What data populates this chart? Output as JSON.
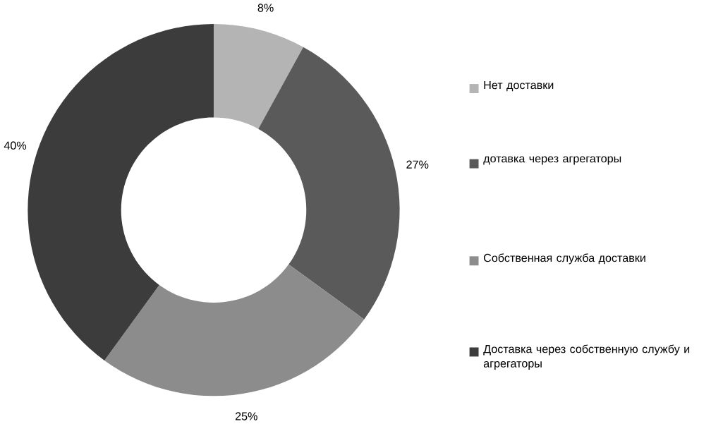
{
  "chart_data": {
    "type": "donut",
    "categories": [
      "Нет доставки",
      "дотавка через агрегаторы",
      "Собственная служба доставки",
      "Доставка через собственную службу и агрегаторы"
    ],
    "values": [
      8,
      27,
      25,
      40
    ],
    "value_labels": [
      "8%",
      "27%",
      "25%",
      "40%"
    ],
    "colors": [
      "#b4b4b4",
      "#5a5a5a",
      "#8c8c8c",
      "#3c3c3c"
    ],
    "legend": "right"
  }
}
